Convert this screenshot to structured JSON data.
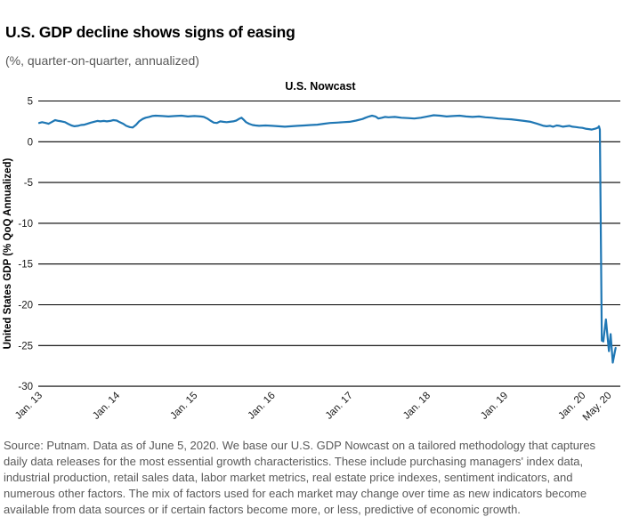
{
  "header": {
    "title": "U.S. GDP decline shows signs of easing",
    "subtitle": "(%, quarter-on-quarter, annualized)"
  },
  "chart_data": {
    "type": "line",
    "title": "U.S. Nowcast",
    "ylabel": "United States GDP (% QoQ Annualized)",
    "xlabel": "",
    "ylim": [
      -30,
      5
    ],
    "yticks": [
      5,
      0,
      -5,
      -10,
      -15,
      -20,
      -25,
      -30
    ],
    "grid": "horizontal-black-lines",
    "legend_position": "none",
    "line_color": "#1f77b4",
    "xticks": [
      {
        "date": "2013-01-01",
        "label": "Jan. 13"
      },
      {
        "date": "2014-01-01",
        "label": "Jan. 14"
      },
      {
        "date": "2015-01-01",
        "label": "Jan. 15"
      },
      {
        "date": "2016-01-01",
        "label": "Jan. 16"
      },
      {
        "date": "2017-01-01",
        "label": "Jan. 17"
      },
      {
        "date": "2018-01-01",
        "label": "Jan. 18"
      },
      {
        "date": "2019-01-01",
        "label": "Jan. 19"
      },
      {
        "date": "2020-01-01",
        "label": "Jan. 20"
      },
      {
        "date": "2020-05-01",
        "label": "May. 20"
      }
    ],
    "series": [
      {
        "name": "U.S. Nowcast",
        "points": [
          [
            "2013-01-01",
            2.3
          ],
          [
            "2013-01-15",
            2.4
          ],
          [
            "2013-02-01",
            2.3
          ],
          [
            "2013-02-15",
            2.2
          ],
          [
            "2013-03-01",
            2.45
          ],
          [
            "2013-03-15",
            2.65
          ],
          [
            "2013-04-01",
            2.55
          ],
          [
            "2013-04-15",
            2.5
          ],
          [
            "2013-05-01",
            2.4
          ],
          [
            "2013-05-15",
            2.2
          ],
          [
            "2013-06-01",
            2.0
          ],
          [
            "2013-06-15",
            1.9
          ],
          [
            "2013-07-01",
            1.95
          ],
          [
            "2013-07-15",
            2.05
          ],
          [
            "2013-08-01",
            2.1
          ],
          [
            "2013-08-15",
            2.2
          ],
          [
            "2013-09-01",
            2.35
          ],
          [
            "2013-09-15",
            2.45
          ],
          [
            "2013-10-01",
            2.55
          ],
          [
            "2013-10-15",
            2.5
          ],
          [
            "2013-11-01",
            2.55
          ],
          [
            "2013-11-15",
            2.5
          ],
          [
            "2013-12-01",
            2.55
          ],
          [
            "2013-12-15",
            2.65
          ],
          [
            "2014-01-01",
            2.6
          ],
          [
            "2014-01-15",
            2.4
          ],
          [
            "2014-02-01",
            2.2
          ],
          [
            "2014-02-15",
            1.95
          ],
          [
            "2014-03-01",
            1.8
          ],
          [
            "2014-03-15",
            1.75
          ],
          [
            "2014-04-01",
            2.1
          ],
          [
            "2014-04-15",
            2.5
          ],
          [
            "2014-05-01",
            2.8
          ],
          [
            "2014-05-15",
            2.95
          ],
          [
            "2014-06-01",
            3.05
          ],
          [
            "2014-06-15",
            3.15
          ],
          [
            "2014-07-01",
            3.2
          ],
          [
            "2014-08-01",
            3.15
          ],
          [
            "2014-09-01",
            3.1
          ],
          [
            "2014-10-01",
            3.15
          ],
          [
            "2014-11-01",
            3.2
          ],
          [
            "2014-12-01",
            3.1
          ],
          [
            "2015-01-01",
            3.15
          ],
          [
            "2015-02-01",
            3.1
          ],
          [
            "2015-02-15",
            3.05
          ],
          [
            "2015-03-01",
            2.85
          ],
          [
            "2015-03-15",
            2.6
          ],
          [
            "2015-04-01",
            2.35
          ],
          [
            "2015-04-15",
            2.3
          ],
          [
            "2015-05-01",
            2.5
          ],
          [
            "2015-05-15",
            2.45
          ],
          [
            "2015-06-01",
            2.4
          ],
          [
            "2015-06-15",
            2.45
          ],
          [
            "2015-07-01",
            2.5
          ],
          [
            "2015-07-15",
            2.6
          ],
          [
            "2015-08-01",
            2.85
          ],
          [
            "2015-08-10",
            2.95
          ],
          [
            "2015-08-20",
            2.7
          ],
          [
            "2015-09-01",
            2.4
          ],
          [
            "2015-09-15",
            2.2
          ],
          [
            "2015-10-01",
            2.05
          ],
          [
            "2015-10-15",
            2.0
          ],
          [
            "2015-11-01",
            1.95
          ],
          [
            "2015-12-01",
            2.0
          ],
          [
            "2016-01-01",
            1.95
          ],
          [
            "2016-02-01",
            1.9
          ],
          [
            "2016-03-01",
            1.85
          ],
          [
            "2016-04-01",
            1.9
          ],
          [
            "2016-05-01",
            1.95
          ],
          [
            "2016-06-01",
            2.0
          ],
          [
            "2016-07-01",
            2.05
          ],
          [
            "2016-08-01",
            2.1
          ],
          [
            "2016-09-01",
            2.2
          ],
          [
            "2016-10-01",
            2.3
          ],
          [
            "2016-11-01",
            2.35
          ],
          [
            "2016-12-01",
            2.4
          ],
          [
            "2017-01-01",
            2.45
          ],
          [
            "2017-02-01",
            2.6
          ],
          [
            "2017-03-01",
            2.8
          ],
          [
            "2017-03-15",
            2.95
          ],
          [
            "2017-04-01",
            3.1
          ],
          [
            "2017-04-15",
            3.2
          ],
          [
            "2017-05-01",
            3.1
          ],
          [
            "2017-05-15",
            2.85
          ],
          [
            "2017-06-01",
            2.95
          ],
          [
            "2017-06-15",
            3.05
          ],
          [
            "2017-07-01",
            3.0
          ],
          [
            "2017-08-01",
            3.05
          ],
          [
            "2017-09-01",
            2.95
          ],
          [
            "2017-10-01",
            2.9
          ],
          [
            "2017-11-01",
            2.85
          ],
          [
            "2017-12-01",
            2.95
          ],
          [
            "2018-01-01",
            3.1
          ],
          [
            "2018-02-01",
            3.25
          ],
          [
            "2018-03-01",
            3.2
          ],
          [
            "2018-04-01",
            3.1
          ],
          [
            "2018-05-01",
            3.15
          ],
          [
            "2018-06-01",
            3.2
          ],
          [
            "2018-07-01",
            3.1
          ],
          [
            "2018-08-01",
            3.05
          ],
          [
            "2018-09-01",
            3.1
          ],
          [
            "2018-10-01",
            3.0
          ],
          [
            "2018-11-01",
            2.95
          ],
          [
            "2018-12-01",
            2.85
          ],
          [
            "2019-01-01",
            2.8
          ],
          [
            "2019-02-01",
            2.75
          ],
          [
            "2019-03-01",
            2.65
          ],
          [
            "2019-04-01",
            2.55
          ],
          [
            "2019-05-01",
            2.45
          ],
          [
            "2019-06-01",
            2.2
          ],
          [
            "2019-07-01",
            1.95
          ],
          [
            "2019-07-15",
            1.9
          ],
          [
            "2019-08-01",
            1.95
          ],
          [
            "2019-08-15",
            1.85
          ],
          [
            "2019-09-01",
            2.0
          ],
          [
            "2019-09-15",
            1.95
          ],
          [
            "2019-10-01",
            1.85
          ],
          [
            "2019-10-15",
            1.9
          ],
          [
            "2019-11-01",
            1.95
          ],
          [
            "2019-11-15",
            1.85
          ],
          [
            "2019-12-01",
            1.8
          ],
          [
            "2019-12-15",
            1.75
          ],
          [
            "2020-01-01",
            1.7
          ],
          [
            "2020-01-15",
            1.6
          ],
          [
            "2020-02-01",
            1.55
          ],
          [
            "2020-02-15",
            1.5
          ],
          [
            "2020-03-01",
            1.6
          ],
          [
            "2020-03-14",
            1.75
          ],
          [
            "2020-03-18",
            1.9
          ],
          [
            "2020-03-22",
            1.5
          ],
          [
            "2020-04-01",
            -24.4
          ],
          [
            "2020-04-08",
            -24.5
          ],
          [
            "2020-04-20",
            -21.8
          ],
          [
            "2020-05-04",
            -25.7
          ],
          [
            "2020-05-12",
            -23.6
          ],
          [
            "2020-05-22",
            -27.1
          ],
          [
            "2020-06-05",
            -25.3
          ]
        ]
      }
    ]
  },
  "footer": {
    "source_text": "Source: Putnam. Data as of June 5, 2020. We base our U.S. GDP Nowcast on a tailored methodology that captures daily data releases for the most essential growth characteristics. These include purchasing managers' index data, industrial production, retail sales data, labor market metrics, real estate price indexes, sentiment indicators, and numerous other factors. The mix of factors used for each market may change over time as new indicators become available from data sources or if certain factors become more, or less, predictive of economic growth."
  }
}
